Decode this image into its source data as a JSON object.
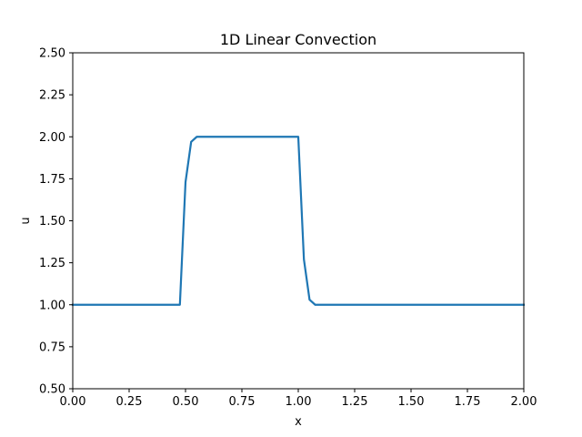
{
  "chart_data": {
    "type": "line",
    "title": "1D Linear Convection",
    "xlabel": "x",
    "ylabel": "u",
    "xlim": [
      0,
      2
    ],
    "ylim": [
      0.5,
      2.5
    ],
    "xticks": [
      "0.00",
      "0.25",
      "0.50",
      "0.75",
      "1.00",
      "1.25",
      "1.50",
      "1.75",
      "2.00"
    ],
    "yticks": [
      "0.50",
      "0.75",
      "1.00",
      "1.25",
      "1.50",
      "1.75",
      "2.00",
      "2.25",
      "2.50"
    ],
    "grid": false,
    "series": [
      {
        "color": "#1f77b4",
        "x": [
          0.0,
          0.05,
          0.1,
          0.15,
          0.2,
          0.25,
          0.3,
          0.35,
          0.4,
          0.45,
          0.475,
          0.5,
          0.525,
          0.55,
          0.6,
          0.65,
          0.7,
          0.75,
          0.8,
          0.85,
          0.9,
          0.95,
          1.0,
          1.025,
          1.05,
          1.075,
          1.1,
          1.15,
          1.2,
          1.25,
          1.3,
          1.35,
          1.4,
          1.45,
          1.5,
          1.55,
          1.6,
          1.65,
          1.7,
          1.75,
          1.8,
          1.85,
          1.9,
          1.95,
          2.0
        ],
        "y": [
          1.0,
          1.0,
          1.0,
          1.0,
          1.0,
          1.0,
          1.0,
          1.0,
          1.0,
          1.0,
          1.0,
          1.73,
          1.97,
          2.0,
          2.0,
          2.0,
          2.0,
          2.0,
          2.0,
          2.0,
          2.0,
          2.0,
          2.0,
          1.27,
          1.03,
          1.0,
          1.0,
          1.0,
          1.0,
          1.0,
          1.0,
          1.0,
          1.0,
          1.0,
          1.0,
          1.0,
          1.0,
          1.0,
          1.0,
          1.0,
          1.0,
          1.0,
          1.0,
          1.0,
          1.0
        ]
      }
    ]
  }
}
